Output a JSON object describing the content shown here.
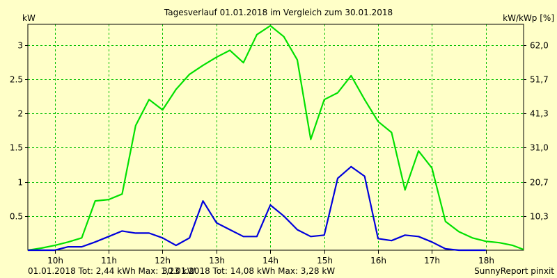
{
  "chart_data": {
    "type": "line",
    "title": "Tagesverlauf 01.01.2018 im Vergleich zum 30.01.2018",
    "ylabel_left": "kW",
    "ylabel_right": "kW/kWp [%]",
    "ylim": [
      0,
      3.3
    ],
    "y_ticks": [
      0.5,
      1,
      1.5,
      2,
      2.5,
      3
    ],
    "y_tick_labels": [
      "0.5",
      "1",
      "1.5",
      "2",
      "2.5",
      "3"
    ],
    "y2_ticks": [
      0.5,
      1,
      1.5,
      2,
      2.5,
      3
    ],
    "y2_tick_labels": [
      "10,3",
      "20,7",
      "31,0",
      "41,3",
      "51,7",
      "62,0"
    ],
    "xlim": [
      9.5,
      18.7
    ],
    "x_ticks": [
      10,
      11,
      12,
      13,
      14,
      15,
      16,
      17,
      18
    ],
    "x_tick_labels": [
      "10h",
      "11h",
      "12h",
      "13h",
      "14h",
      "15h",
      "16h",
      "17h",
      "18h"
    ],
    "grid": true,
    "series": [
      {
        "name": "30.01.2018",
        "color": "#00e000",
        "x": [
          9.5,
          9.75,
          10.0,
          10.25,
          10.5,
          10.75,
          11.0,
          11.25,
          11.5,
          11.75,
          12.0,
          12.25,
          12.5,
          12.75,
          13.0,
          13.25,
          13.5,
          13.75,
          14.0,
          14.25,
          14.5,
          14.75,
          15.0,
          15.25,
          15.5,
          15.75,
          16.0,
          16.25,
          16.5,
          16.75,
          17.0,
          17.25,
          17.5,
          17.75,
          18.0,
          18.25,
          18.5,
          18.7
        ],
        "values": [
          0.0,
          0.03,
          0.07,
          0.12,
          0.18,
          0.72,
          0.74,
          0.82,
          1.82,
          2.2,
          2.05,
          2.35,
          2.57,
          2.7,
          2.82,
          2.92,
          2.74,
          3.15,
          3.28,
          3.12,
          2.78,
          1.62,
          2.2,
          2.3,
          2.55,
          2.2,
          1.88,
          1.72,
          0.88,
          1.45,
          1.2,
          0.42,
          0.27,
          0.18,
          0.13,
          0.11,
          0.07,
          0.01
        ]
      },
      {
        "name": "01.01.2018",
        "color": "#0000dc",
        "x": [
          9.5,
          10.0,
          10.25,
          10.5,
          10.75,
          11.0,
          11.25,
          11.5,
          11.75,
          12.0,
          12.25,
          12.5,
          12.75,
          13.0,
          13.25,
          13.5,
          13.75,
          14.0,
          14.25,
          14.5,
          14.75,
          15.0,
          15.25,
          15.5,
          15.75,
          16.0,
          16.25,
          16.5,
          16.75,
          17.0,
          17.25,
          17.5,
          17.75,
          18.0
        ],
        "values": [
          0.0,
          0.0,
          0.05,
          0.05,
          0.12,
          0.2,
          0.28,
          0.25,
          0.25,
          0.18,
          0.07,
          0.18,
          0.72,
          0.4,
          0.3,
          0.2,
          0.2,
          0.66,
          0.5,
          0.3,
          0.2,
          0.22,
          1.05,
          1.22,
          1.08,
          0.17,
          0.14,
          0.22,
          0.2,
          0.12,
          0.02,
          0.0,
          0.0,
          0.0
        ]
      }
    ],
    "footer": {
      "series1": "01.01.2018 Tot: 2,44 kWh Max: 1,23 kW",
      "series2": "30.01.2018 Tot: 14,08 kWh Max: 3,28 kW",
      "credit": "SunnyReport pinxit"
    },
    "colors": {
      "background": "#ffffc8",
      "grid": "#00c000",
      "axis": "#000000"
    }
  }
}
